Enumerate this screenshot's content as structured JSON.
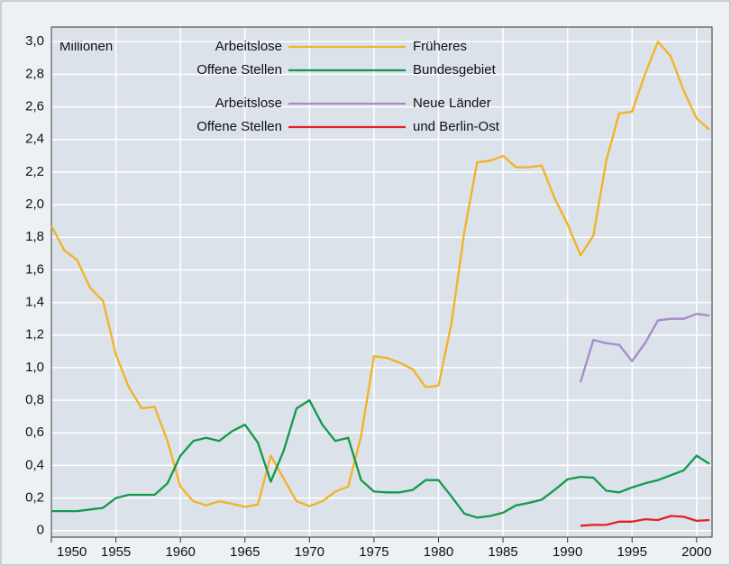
{
  "chart_data": {
    "type": "line",
    "y_unit": "Millionen",
    "x": [
      1950,
      1951,
      1952,
      1953,
      1954,
      1955,
      1956,
      1957,
      1958,
      1959,
      1960,
      1961,
      1962,
      1963,
      1964,
      1965,
      1966,
      1967,
      1968,
      1969,
      1970,
      1971,
      1972,
      1973,
      1974,
      1975,
      1976,
      1977,
      1978,
      1979,
      1980,
      1981,
      1982,
      1983,
      1984,
      1985,
      1986,
      1987,
      1988,
      1989,
      1990,
      1991,
      1992,
      1993,
      1994,
      1995,
      1996,
      1997,
      1998,
      1999,
      2000,
      2001
    ],
    "series": [
      {
        "name": "Arbeitslose",
        "group": "Früheres",
        "color": "#f4b223",
        "values": [
          1.87,
          1.72,
          1.66,
          1.49,
          1.41,
          1.08,
          0.88,
          0.75,
          0.76,
          0.55,
          0.27,
          0.18,
          0.155,
          0.18,
          0.165,
          0.145,
          0.16,
          0.46,
          0.32,
          0.18,
          0.15,
          0.18,
          0.24,
          0.27,
          0.58,
          1.07,
          1.06,
          1.03,
          0.99,
          0.88,
          0.89,
          1.27,
          1.83,
          2.26,
          2.27,
          2.3,
          2.23,
          2.23,
          2.24,
          2.04,
          1.88,
          1.69,
          1.81,
          2.27,
          2.56,
          2.57,
          2.8,
          3.0,
          2.91,
          2.7,
          2.53,
          2.46
        ]
      },
      {
        "name": "Offene Stellen",
        "group": "Bundesgebiet",
        "color": "#119a4a",
        "values": [
          0.12,
          0.12,
          0.12,
          0.13,
          0.14,
          0.2,
          0.22,
          0.22,
          0.22,
          0.29,
          0.46,
          0.55,
          0.57,
          0.55,
          0.61,
          0.65,
          0.54,
          0.3,
          0.49,
          0.75,
          0.8,
          0.65,
          0.55,
          0.57,
          0.31,
          0.24,
          0.235,
          0.235,
          0.25,
          0.31,
          0.31,
          0.21,
          0.105,
          0.08,
          0.09,
          0.11,
          0.155,
          0.17,
          0.19,
          0.25,
          0.315,
          0.33,
          0.325,
          0.245,
          0.235,
          0.265,
          0.29,
          0.31,
          0.34,
          0.37,
          0.46,
          0.41
        ]
      },
      {
        "name": "Arbeitslose",
        "group": "Neue Länder",
        "color": "#a68bcb",
        "values": [
          null,
          null,
          null,
          null,
          null,
          null,
          null,
          null,
          null,
          null,
          null,
          null,
          null,
          null,
          null,
          null,
          null,
          null,
          null,
          null,
          null,
          null,
          null,
          null,
          null,
          null,
          null,
          null,
          null,
          null,
          null,
          null,
          null,
          null,
          null,
          null,
          null,
          null,
          null,
          null,
          null,
          0.91,
          1.17,
          1.15,
          1.14,
          1.04,
          1.15,
          1.29,
          1.3,
          1.3,
          1.33,
          1.32
        ]
      },
      {
        "name": "Offene Stellen",
        "group": "und Berlin-Ost",
        "color": "#e1202b",
        "values": [
          null,
          null,
          null,
          null,
          null,
          null,
          null,
          null,
          null,
          null,
          null,
          null,
          null,
          null,
          null,
          null,
          null,
          null,
          null,
          null,
          null,
          null,
          null,
          null,
          null,
          null,
          null,
          null,
          null,
          null,
          null,
          null,
          null,
          null,
          null,
          null,
          null,
          null,
          null,
          null,
          null,
          0.03,
          0.035,
          0.035,
          0.055,
          0.055,
          0.07,
          0.065,
          0.09,
          0.085,
          0.06,
          0.065
        ]
      }
    ],
    "xlim": [
      1950,
      2001.2
    ],
    "xticks": [
      1950,
      1955,
      1960,
      1965,
      1970,
      1975,
      1980,
      1985,
      1990,
      1995,
      2000
    ],
    "ylim": [
      -0.04,
      3.09
    ],
    "yticks": [
      0,
      {
        "value": 0.2,
        "label": "0,2"
      },
      {
        "value": 0.4,
        "label": "0,4"
      },
      {
        "value": 0.6,
        "label": "0,6"
      },
      {
        "value": 0.8,
        "label": "0,8"
      },
      {
        "value": 1.0,
        "label": "1,0"
      },
      {
        "value": 1.2,
        "label": "1,2"
      },
      {
        "value": 1.4,
        "label": "1,4"
      },
      {
        "value": 1.6,
        "label": "1,6"
      },
      {
        "value": 1.8,
        "label": "1,8"
      },
      {
        "value": 2.0,
        "label": "2,0"
      },
      {
        "value": 2.2,
        "label": "2,2"
      },
      {
        "value": 2.4,
        "label": "2,4"
      },
      {
        "value": 2.6,
        "label": "2,6"
      },
      {
        "value": 2.8,
        "label": "2,8"
      },
      {
        "value": 3.0,
        "label": "3,0"
      }
    ],
    "grid": true
  }
}
